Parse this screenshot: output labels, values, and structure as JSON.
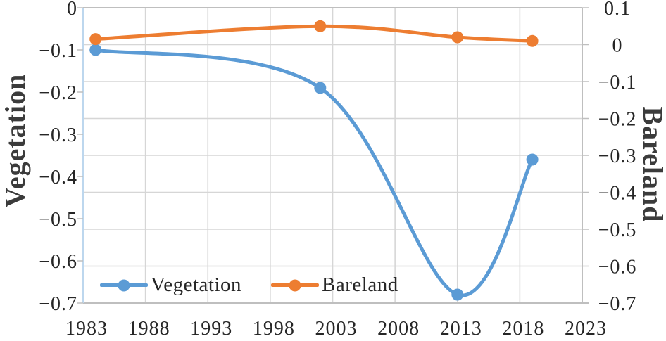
{
  "chart_data": {
    "type": "line",
    "smooth": true,
    "marker": "circle",
    "x": [
      1984,
      2002,
      2013,
      2019
    ],
    "series": [
      {
        "name": "Vegetation",
        "axis": "left",
        "color": "#5B9BD5",
        "values": [
          -0.1,
          -0.19,
          -0.68,
          -0.36
        ]
      },
      {
        "name": "Bareland",
        "axis": "right",
        "color": "#ED7D31",
        "values": [
          0.015,
          0.05,
          0.02,
          0.01
        ]
      }
    ],
    "x_axis": {
      "min": 1983,
      "max": 2023,
      "ticks": [
        "1983",
        "1988",
        "1993",
        "1998",
        "2003",
        "2008",
        "2013",
        "2018",
        "2023"
      ]
    },
    "left_axis": {
      "title": "Vegetation",
      "min": -0.7,
      "max": 0,
      "ticks": [
        "0",
        "−0.1",
        "−0.2",
        "−0.3",
        "−0.4",
        "−0.5",
        "−0.6",
        "−0.7"
      ]
    },
    "right_axis": {
      "title": "Bareland",
      "min": -0.7,
      "max": 0.1,
      "ticks": [
        "0.1",
        "0",
        "−0.1",
        "−0.2",
        "−0.3",
        "−0.4",
        "−0.5",
        "−0.6",
        "−0.7"
      ]
    },
    "legend": {
      "position": "inside-bottom-left",
      "items": [
        {
          "label": "Vegetation",
          "color": "#5B9BD5"
        },
        {
          "label": "Bareland",
          "color": "#ED7D31"
        }
      ]
    },
    "grid": true,
    "colors": {
      "gridline": "#D6D6D6",
      "border": "#BFBFBF",
      "left_axis_line": "#BDD7EE",
      "text": "#262626"
    }
  }
}
